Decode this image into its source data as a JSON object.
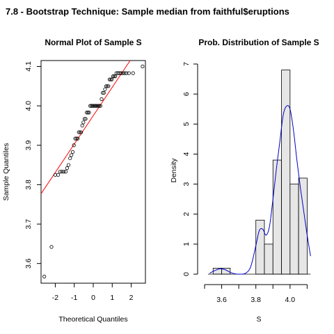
{
  "figure": {
    "title": "7.8 - Bootstrap Technique: Sample median from faithful$eruptions"
  },
  "chart_data": [
    {
      "type": "scatter",
      "title": "Normal Plot of Sample S",
      "xlabel": "Theoretical Quantiles",
      "ylabel": "Sample Quantiles",
      "xlim": [
        -2.75,
        2.75
      ],
      "ylim": [
        3.55,
        4.115
      ],
      "xticks": [
        -2,
        -1,
        0,
        1,
        2
      ],
      "yticks": [
        3.6,
        3.7,
        3.8,
        3.9,
        4.0,
        4.1
      ],
      "points": [
        [
          -2.58,
          3.567
        ],
        [
          -2.2,
          3.642
        ],
        [
          -2.0,
          3.825
        ],
        [
          -1.85,
          3.825
        ],
        [
          -1.75,
          3.833
        ],
        [
          -1.65,
          3.833
        ],
        [
          -1.55,
          3.833
        ],
        [
          -1.45,
          3.833
        ],
        [
          -1.38,
          3.842
        ],
        [
          -1.3,
          3.85
        ],
        [
          -1.22,
          3.867
        ],
        [
          -1.15,
          3.875
        ],
        [
          -1.08,
          3.883
        ],
        [
          -1.02,
          3.9
        ],
        [
          -0.95,
          3.917
        ],
        [
          -0.88,
          3.917
        ],
        [
          -0.82,
          3.917
        ],
        [
          -0.76,
          3.933
        ],
        [
          -0.7,
          3.933
        ],
        [
          -0.64,
          3.933
        ],
        [
          -0.58,
          3.95
        ],
        [
          -0.52,
          3.958
        ],
        [
          -0.46,
          3.967
        ],
        [
          -0.4,
          3.967
        ],
        [
          -0.34,
          3.983
        ],
        [
          -0.28,
          3.983
        ],
        [
          -0.22,
          3.983
        ],
        [
          -0.16,
          4.0
        ],
        [
          -0.1,
          4.0
        ],
        [
          -0.04,
          4.0
        ],
        [
          0.02,
          4.0
        ],
        [
          0.08,
          4.0
        ],
        [
          0.14,
          4.0
        ],
        [
          0.2,
          4.0
        ],
        [
          0.26,
          4.0
        ],
        [
          0.32,
          4.0
        ],
        [
          0.38,
          4.0
        ],
        [
          0.44,
          4.017
        ],
        [
          0.5,
          4.033
        ],
        [
          0.56,
          4.033
        ],
        [
          0.62,
          4.042
        ],
        [
          0.68,
          4.05
        ],
        [
          0.74,
          4.05
        ],
        [
          0.8,
          4.05
        ],
        [
          0.86,
          4.067
        ],
        [
          0.92,
          4.067
        ],
        [
          0.98,
          4.067
        ],
        [
          1.04,
          4.075
        ],
        [
          1.1,
          4.075
        ],
        [
          1.16,
          4.075
        ],
        [
          1.22,
          4.083
        ],
        [
          1.3,
          4.083
        ],
        [
          1.38,
          4.083
        ],
        [
          1.46,
          4.083
        ],
        [
          1.55,
          4.083
        ],
        [
          1.65,
          4.083
        ],
        [
          1.75,
          4.083
        ],
        [
          1.88,
          4.083
        ],
        [
          2.1,
          4.083
        ],
        [
          2.6,
          4.1
        ]
      ],
      "qqline": {
        "intercept": 3.975,
        "slope": 0.072,
        "color": "#ff0000"
      }
    },
    {
      "type": "bar",
      "title": "Prob. Distribution of Sample S",
      "xlabel": "S",
      "ylabel": "Density",
      "xlim": [
        3.5,
        4.135
      ],
      "ylim": [
        0,
        7
      ],
      "xticks": [
        3.6,
        3.8,
        4.0
      ],
      "yticks": [
        0,
        1,
        2,
        3,
        4,
        5,
        6,
        7
      ],
      "bins": [
        {
          "from": 3.55,
          "to": 3.6,
          "density": 0.2
        },
        {
          "from": 3.6,
          "to": 3.65,
          "density": 0.2
        },
        {
          "from": 3.8,
          "to": 3.85,
          "density": 1.8
        },
        {
          "from": 3.85,
          "to": 3.9,
          "density": 1.0
        },
        {
          "from": 3.9,
          "to": 3.95,
          "density": 3.8
        },
        {
          "from": 3.95,
          "to": 4.0,
          "density": 6.8
        },
        {
          "from": 4.0,
          "to": 4.05,
          "density": 3.0
        },
        {
          "from": 4.05,
          "to": 4.1,
          "density": 3.2
        }
      ],
      "bar_color": "#e6e6e6",
      "density_curve": {
        "color": "#0000cc",
        "x": [
          3.53,
          3.56,
          3.59,
          3.62,
          3.65,
          3.68,
          3.71,
          3.74,
          3.77,
          3.8,
          3.82,
          3.84,
          3.86,
          3.88,
          3.9,
          3.92,
          3.94,
          3.96,
          3.98,
          4.0,
          4.02,
          4.04,
          4.06,
          4.08,
          4.1,
          4.12
        ],
        "y": [
          0.03,
          0.12,
          0.18,
          0.15,
          0.06,
          0.01,
          0.0,
          0.03,
          0.25,
          0.95,
          1.45,
          1.5,
          1.3,
          1.6,
          2.5,
          3.5,
          4.4,
          5.3,
          5.6,
          5.5,
          4.8,
          3.8,
          2.9,
          2.1,
          1.3,
          0.6
        ]
      }
    }
  ]
}
